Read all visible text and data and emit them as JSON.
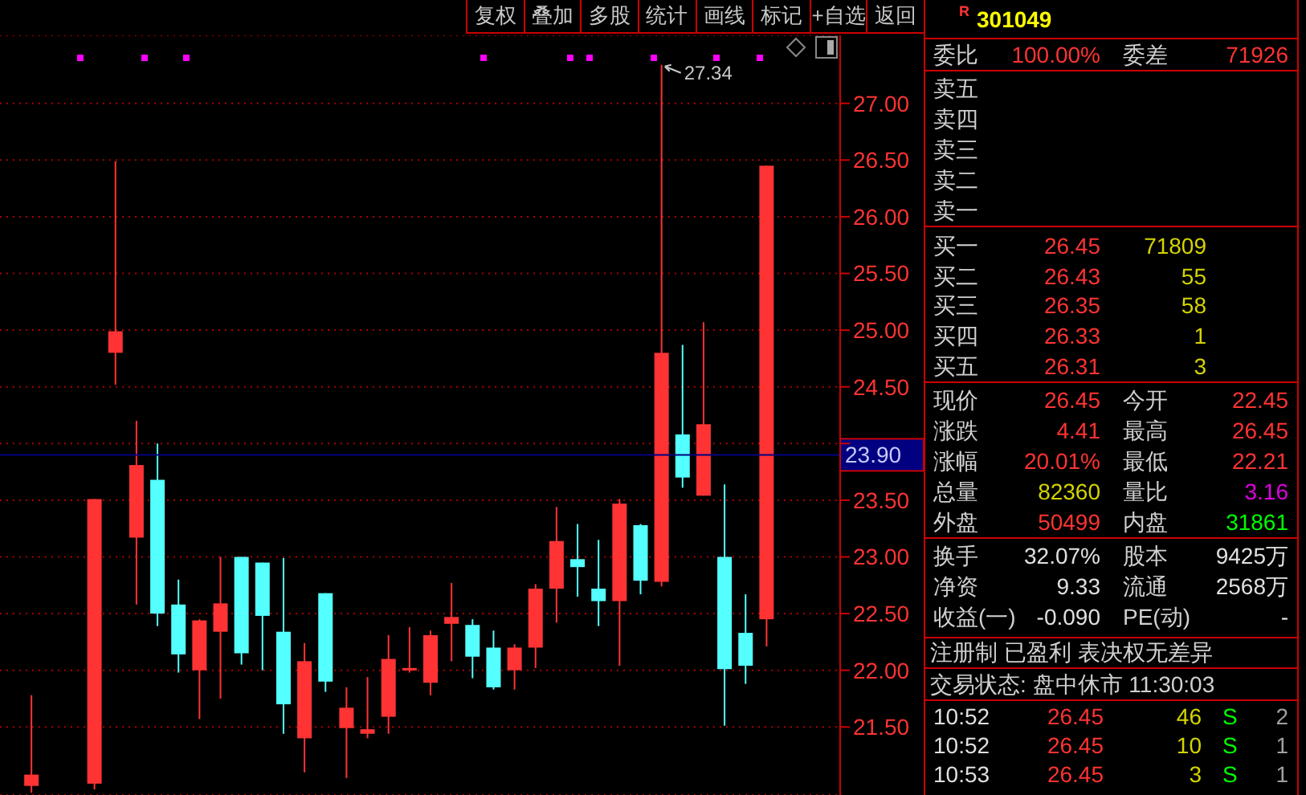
{
  "chart_data": [
    {
      "type": "candlestick",
      "categories": [
        null,
        null,
        null,
        null,
        null,
        null,
        null,
        null,
        null,
        null,
        null,
        null,
        null,
        null,
        null,
        null,
        null,
        null,
        null,
        null,
        null,
        null,
        null,
        null,
        null,
        null,
        null,
        null,
        null,
        null,
        null,
        null,
        null,
        null,
        null,
        null,
        null,
        null,
        null,
        null
      ],
      "ohlc": [
        null,
        [
          20.98,
          21.78,
          20.92,
          21.08
        ],
        null,
        null,
        [
          21.0,
          23.51,
          20.95,
          23.51
        ],
        [
          24.8,
          26.49,
          24.52,
          24.99
        ],
        [
          23.17,
          24.2,
          22.58,
          23.81
        ],
        [
          23.68,
          24.0,
          22.39,
          22.5
        ],
        [
          22.58,
          22.8,
          21.98,
          22.14
        ],
        [
          22.0,
          22.45,
          21.57,
          22.44
        ],
        [
          22.34,
          23.0,
          21.75,
          22.59
        ],
        [
          23.0,
          23.0,
          22.05,
          22.15
        ],
        [
          22.95,
          22.95,
          22.0,
          22.48
        ],
        [
          22.34,
          22.99,
          21.44,
          21.7
        ],
        [
          21.4,
          22.24,
          21.1,
          22.08
        ],
        [
          22.68,
          22.68,
          21.81,
          21.9
        ],
        [
          21.49,
          21.85,
          21.05,
          21.67
        ],
        [
          21.44,
          21.94,
          21.4,
          21.48
        ],
        [
          21.59,
          22.31,
          21.44,
          22.1
        ],
        [
          22.0,
          22.38,
          21.98,
          22.02
        ],
        [
          21.89,
          22.35,
          21.78,
          22.31
        ],
        [
          22.41,
          22.77,
          22.08,
          22.47
        ],
        [
          22.4,
          22.45,
          21.93,
          22.12
        ],
        [
          22.2,
          22.35,
          21.83,
          21.85
        ],
        [
          22.0,
          22.23,
          21.83,
          22.2
        ],
        [
          22.2,
          22.76,
          22.02,
          22.72
        ],
        [
          22.72,
          23.44,
          22.42,
          23.14
        ],
        [
          22.98,
          23.29,
          22.65,
          22.91
        ],
        [
          22.72,
          23.15,
          22.39,
          22.61
        ],
        [
          22.61,
          23.51,
          22.04,
          23.47
        ],
        [
          23.28,
          23.29,
          22.67,
          22.79
        ],
        [
          22.78,
          27.34,
          22.74,
          24.8
        ],
        [
          24.08,
          24.87,
          23.61,
          23.7
        ],
        [
          23.54,
          25.07,
          23.54,
          24.17
        ],
        [
          23.0,
          23.64,
          21.51,
          22.01
        ],
        [
          22.33,
          22.67,
          21.88,
          22.04
        ],
        [
          22.45,
          26.45,
          22.21,
          26.45
        ],
        null,
        null,
        null
      ],
      "colors": [
        null,
        "#ff3333",
        null,
        null,
        "#ff3333",
        "#ff3333",
        "#ff3333",
        "#54ffff",
        "#54ffff",
        "#ff3333",
        "#ff3333",
        "#54ffff",
        "#54ffff",
        "#54ffff",
        "#ff3333",
        "#54ffff",
        "#ff3333",
        "#ff3333",
        "#ff3333",
        "#ff3333",
        "#ff3333",
        "#ff3333",
        "#54ffff",
        "#54ffff",
        "#ff3333",
        "#ff3333",
        "#ff3333",
        "#54ffff",
        "#54ffff",
        "#ff3333",
        "#54ffff",
        "#ff3333",
        "#54ffff",
        "#ff3333",
        "#54ffff",
        "#54ffff",
        "#ff3333",
        null,
        null,
        null
      ],
      "ylim": [
        20.9,
        27.6
      ],
      "yticks": [
        {
          "value": 21.5,
          "label": "21.50"
        },
        {
          "value": 22,
          "label": "22.00"
        },
        {
          "value": 22.5,
          "label": "22.50"
        },
        {
          "value": 23,
          "label": "23.00"
        },
        {
          "value": 23.5,
          "label": "23.50"
        },
        {
          "value": 24,
          "label": null
        },
        {
          "value": 24.5,
          "label": "24.50"
        },
        {
          "value": 25,
          "label": "25.00"
        },
        {
          "value": 25.5,
          "label": "25.50"
        },
        {
          "value": 26,
          "label": "26.00"
        },
        {
          "value": 26.5,
          "label": "26.50"
        },
        {
          "value": 27,
          "label": "27.00"
        }
      ],
      "grid": "y",
      "tick_labels": "y",
      "ref_lines": [
        {
          "axis": "y",
          "value": 23.9,
          "label": "23.90",
          "color": "#000080"
        }
      ],
      "annotations": [
        "复权",
        "叠加",
        "多股",
        "统计",
        "画线",
        "标记",
        "+自选",
        "返回",
        "27.34"
      ]
    },
    {
      "type": "other",
      "title": "301049",
      "annotations": [
        "R",
        "委比",
        "100.00%",
        "委差",
        "71926",
        "卖五",
        "卖四",
        "卖三",
        "卖二",
        "卖一",
        "买一",
        "26.45",
        "71809",
        "买二",
        "26.43",
        "55",
        "买三",
        "26.35",
        "58",
        "买四",
        "26.33",
        "1",
        "买五",
        "26.31",
        "3",
        "现价",
        "26.45",
        "今开",
        "22.45",
        "涨跌",
        "4.41",
        "最高",
        "26.45",
        "涨幅",
        "20.01%",
        "最低",
        "22.21",
        "总量",
        "82360",
        "量比",
        "3.16",
        "外盘",
        "50499",
        "内盘",
        "31861",
        "换手",
        "32.07%",
        "股本",
        "9425万",
        "净资",
        "9.33",
        "流通",
        "2568万",
        "收益(一)",
        "-0.090",
        "PE(动)",
        "-",
        "注册制 已盈利 表决权无差异",
        "交易状态: 盘中休市 11:30:03",
        "10:52",
        "26.45",
        "46",
        "S",
        "2",
        "10:52",
        "26.45",
        "10",
        "S",
        "1",
        "10:53",
        "26.45",
        "3",
        "S",
        "1"
      ]
    }
  ]
}
